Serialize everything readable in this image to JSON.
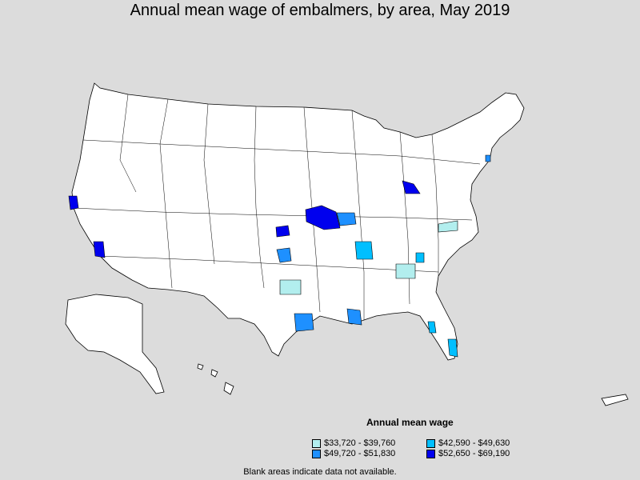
{
  "title": "Annual mean wage of embalmers, by area, May 2019",
  "legend": {
    "title": "Annual mean wage",
    "items": [
      {
        "label": "$33,720 - $39,760",
        "color": "#b2eeee"
      },
      {
        "label": "$42,590 - $49,630",
        "color": "#00bfff"
      },
      {
        "label": "$49,720 - $51,830",
        "color": "#1e90ff"
      },
      {
        "label": "$52,650 - $69,190",
        "color": "#0000ee"
      }
    ]
  },
  "note": "Blank areas indicate data not available.",
  "colors": {
    "background": "#dcdcdc",
    "land": "#ffffff",
    "border": "#000000"
  }
}
